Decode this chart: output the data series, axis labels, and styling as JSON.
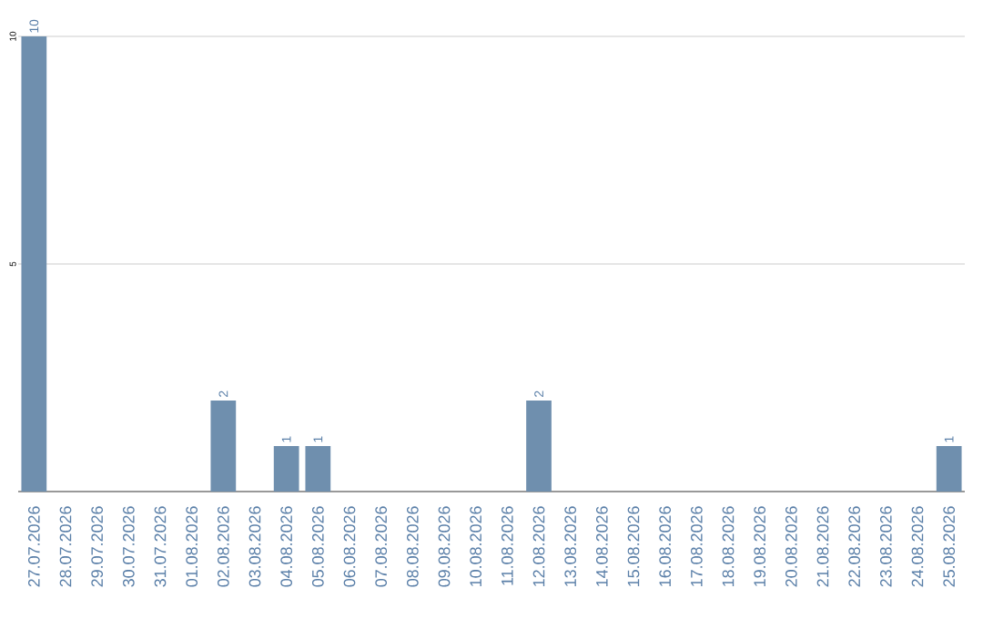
{
  "chart_data": {
    "type": "bar",
    "categories": [
      "27.07.2026",
      "28.07.2026",
      "29.07.2026",
      "30.07.2026",
      "31.07.2026",
      "01.08.2026",
      "02.08.2026",
      "03.08.2026",
      "04.08.2026",
      "05.08.2026",
      "06.08.2026",
      "07.08.2026",
      "08.08.2026",
      "09.08.2026",
      "10.08.2026",
      "11.08.2026",
      "12.08.2026",
      "13.08.2026",
      "14.08.2026",
      "15.08.2026",
      "16.08.2026",
      "17.08.2026",
      "18.08.2026",
      "19.08.2026",
      "20.08.2026",
      "21.08.2026",
      "22.08.2026",
      "23.08.2026",
      "24.08.2026",
      "25.08.2026"
    ],
    "values": [
      10,
      0,
      0,
      0,
      0,
      0,
      2,
      0,
      1,
      1,
      0,
      0,
      0,
      0,
      0,
      0,
      2,
      0,
      0,
      0,
      0,
      0,
      0,
      0,
      0,
      0,
      0,
      0,
      0,
      1
    ],
    "value_labels": [
      "10",
      null,
      null,
      null,
      null,
      null,
      "2",
      null,
      "1",
      "1",
      null,
      null,
      null,
      null,
      null,
      null,
      "2",
      null,
      null,
      null,
      null,
      null,
      null,
      null,
      null,
      null,
      null,
      null,
      null,
      "1"
    ],
    "color": "#6f8fae",
    "ylim": [
      0,
      10
    ],
    "yticks": [
      5,
      10
    ],
    "grid": "y"
  }
}
